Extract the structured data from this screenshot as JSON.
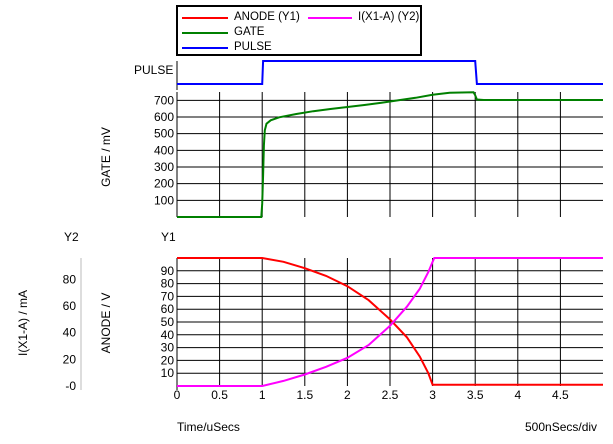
{
  "legend": [
    {
      "label": "ANODE (Y1)",
      "color": "#ff0000"
    },
    {
      "label": "I(X1-A) (Y2)",
      "color": "#ff00ff"
    },
    {
      "label": "GATE",
      "color": "#008000"
    },
    {
      "label": "PULSE",
      "color": "#0000ff"
    }
  ],
  "labels": {
    "pulse_axis": "PULSE",
    "gate_axis": "GATE / mV",
    "y2_header": "Y2",
    "y1_header": "Y1",
    "anode_axis": "ANODE / V",
    "current_axis": "I(X1-A) / mA",
    "time_axis": "Time/uSecs",
    "time_scale": "500nSecs/div"
  },
  "chart_data": [
    {
      "type": "line",
      "name": "pulse",
      "ylabel": "PULSE",
      "xlim": [
        0,
        5
      ],
      "series": [
        {
          "name": "PULSE",
          "color": "#0000ff",
          "x": [
            0,
            1.0,
            1.01,
            3.5,
            3.52,
            5
          ],
          "y": [
            0,
            0,
            1,
            1,
            0,
            0
          ]
        }
      ]
    },
    {
      "type": "line",
      "name": "gate",
      "ylabel": "GATE / mV",
      "xlim": [
        0,
        5
      ],
      "ylim": [
        0,
        750
      ],
      "yticks": [
        100,
        200,
        300,
        400,
        500,
        600,
        700
      ],
      "series": [
        {
          "name": "GATE",
          "color": "#008000",
          "x": [
            0,
            0.99,
            1.0,
            1.01,
            1.02,
            1.03,
            1.05,
            1.1,
            1.2,
            1.4,
            1.6,
            1.8,
            2.0,
            2.2,
            2.4,
            2.6,
            2.8,
            3.0,
            3.2,
            3.48,
            3.5,
            3.52,
            3.6,
            4.0,
            4.5,
            5.0
          ],
          "y": [
            0,
            0,
            80,
            250,
            430,
            520,
            560,
            580,
            598,
            618,
            635,
            648,
            660,
            672,
            685,
            700,
            715,
            733,
            745,
            748,
            730,
            705,
            702,
            702,
            702,
            702
          ]
        }
      ]
    },
    {
      "type": "line",
      "name": "anode-current",
      "xlabel": "Time/uSecs",
      "xlim": [
        0,
        5
      ],
      "xticks": [
        0,
        0.5,
        1,
        1.5,
        2,
        2.5,
        3,
        3.5,
        4,
        4.5
      ],
      "y1": {
        "label": "ANODE / V",
        "ylim": [
          0,
          100
        ],
        "yticks": [
          10,
          20,
          30,
          40,
          50,
          60,
          70,
          80,
          90
        ]
      },
      "y2": {
        "label": "I(X1-A) / mA",
        "ylim": [
          0,
          100
        ],
        "ytick_labels": [
          "-0",
          "20",
          "40",
          "60",
          "80"
        ]
      },
      "series": [
        {
          "name": "ANODE (Y1)",
          "color": "#ff0000",
          "x": [
            0,
            1.0,
            1.25,
            1.5,
            1.75,
            2.0,
            2.25,
            2.5,
            2.7,
            2.85,
            2.95,
            3.0,
            5.0
          ],
          "y": [
            100,
            100,
            97,
            92,
            86,
            78,
            67,
            52,
            38,
            23,
            10,
            1,
            1
          ]
        },
        {
          "name": "I(X1-A) (Y2)",
          "color": "#ff00ff",
          "x": [
            0,
            1.0,
            1.25,
            1.5,
            1.75,
            2.0,
            2.25,
            2.5,
            2.7,
            2.85,
            2.95,
            3.0,
            3.02,
            5.0
          ],
          "y": [
            0,
            0,
            4,
            9,
            15,
            22,
            32,
            47,
            62,
            76,
            89,
            97,
            100,
            100
          ]
        }
      ]
    }
  ]
}
